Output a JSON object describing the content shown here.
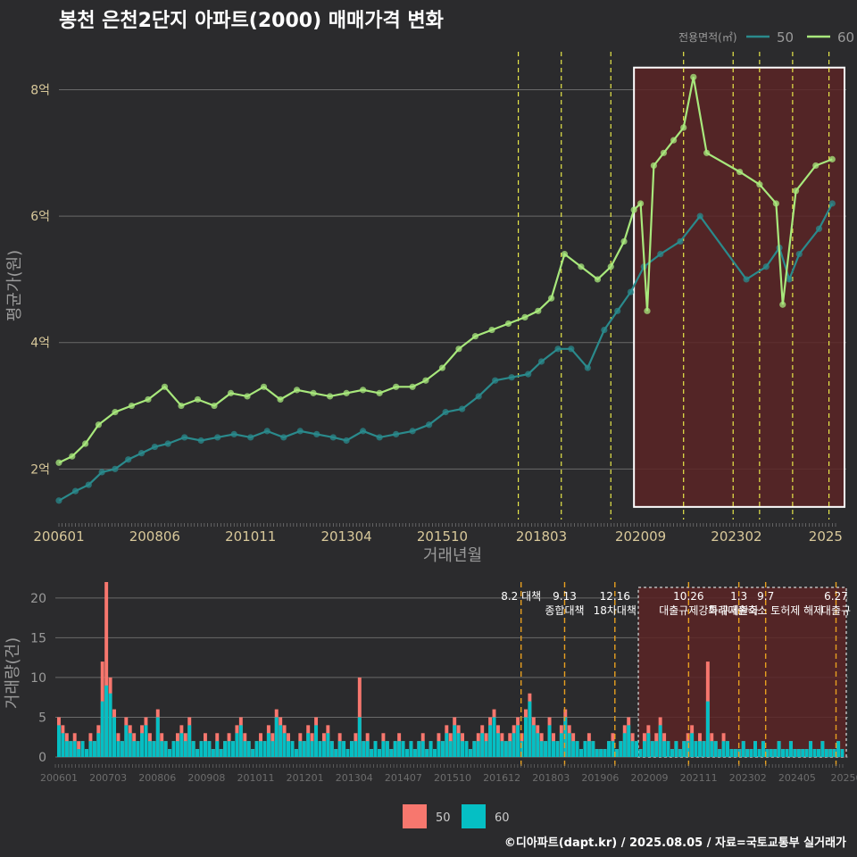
{
  "title": "봉천 은천2단지 아파트(2000) 매매가격 변화",
  "footer": "©디아파트(dapt.kr) / 2025.08.05 / 자료=국토교통부 실거래가",
  "colors": {
    "background": "#2b2b2d",
    "series_50_line": "#2a8a8c",
    "series_60_line": "#a8e87c",
    "bar_50": "#f7776e",
    "bar_60": "#05bfc4",
    "policy_line_yellow": "#e8e84a",
    "policy_line_orange": "#e8a020",
    "highlight_fill": "#5a2426",
    "grid": "#6a6a6a",
    "axis_text": "#d8c89a"
  },
  "chart_data": [
    {
      "type": "line",
      "title": "봉천 은천2단지 아파트(2000) 매매가격 변화",
      "xlabel": "거래년월",
      "ylabel": "평균가(원)",
      "legend": {
        "title": "전용면적(㎡)",
        "entries": [
          "50",
          "60"
        ],
        "placement": "top-right"
      },
      "x_ticks": [
        "200601",
        "200806",
        "201011",
        "201304",
        "201510",
        "201803",
        "202009",
        "202302",
        "2025"
      ],
      "y_ticks": [
        "2억",
        "4억",
        "6억",
        "8억"
      ],
      "ylim": [
        1.2,
        8.6
      ],
      "unit": "억",
      "policy_lines": [
        "2017-08",
        "2018-09",
        "2019-12",
        "2021-10",
        "2023-01",
        "2023-09",
        "2024-07",
        "2025-06"
      ],
      "highlight_range": [
        "2020-07",
        "2025-08"
      ],
      "series": [
        {
          "name": "50",
          "points": [
            [
              "2006-01",
              1.5
            ],
            [
              "2006-06",
              1.65
            ],
            [
              "2006-10",
              1.75
            ],
            [
              "2007-02",
              1.95
            ],
            [
              "2007-06",
              2.0
            ],
            [
              "2007-10",
              2.15
            ],
            [
              "2008-02",
              2.25
            ],
            [
              "2008-06",
              2.35
            ],
            [
              "2008-10",
              2.4
            ],
            [
              "2009-03",
              2.5
            ],
            [
              "2009-08",
              2.45
            ],
            [
              "2010-01",
              2.5
            ],
            [
              "2010-06",
              2.55
            ],
            [
              "2010-11",
              2.5
            ],
            [
              "2011-04",
              2.6
            ],
            [
              "2011-09",
              2.5
            ],
            [
              "2012-02",
              2.6
            ],
            [
              "2012-07",
              2.55
            ],
            [
              "2012-12",
              2.5
            ],
            [
              "2013-04",
              2.45
            ],
            [
              "2013-09",
              2.6
            ],
            [
              "2014-02",
              2.5
            ],
            [
              "2014-07",
              2.55
            ],
            [
              "2014-12",
              2.6
            ],
            [
              "2015-05",
              2.7
            ],
            [
              "2015-10",
              2.9
            ],
            [
              "2016-03",
              2.95
            ],
            [
              "2016-08",
              3.15
            ],
            [
              "2017-01",
              3.4
            ],
            [
              "2017-06",
              3.45
            ],
            [
              "2017-11",
              3.5
            ],
            [
              "2018-03",
              3.7
            ],
            [
              "2018-08",
              3.9
            ],
            [
              "2018-12",
              3.9
            ],
            [
              "2019-05",
              3.6
            ],
            [
              "2019-10",
              4.2
            ],
            [
              "2020-02",
              4.5
            ],
            [
              "2020-06",
              4.8
            ],
            [
              "2020-10",
              5.2
            ],
            [
              "2021-03",
              5.4
            ],
            [
              "2021-09",
              5.6
            ],
            [
              "2022-03",
              6.0
            ],
            [
              "2023-05",
              5.0
            ],
            [
              "2023-11",
              5.2
            ],
            [
              "2024-03",
              5.5
            ],
            [
              "2024-06",
              5.0
            ],
            [
              "2024-09",
              5.4
            ],
            [
              "2025-03",
              5.8
            ],
            [
              "2025-07",
              6.2
            ]
          ]
        },
        {
          "name": "60",
          "points": [
            [
              "2006-01",
              2.1
            ],
            [
              "2006-05",
              2.2
            ],
            [
              "2006-09",
              2.4
            ],
            [
              "2007-01",
              2.7
            ],
            [
              "2007-06",
              2.9
            ],
            [
              "2007-11",
              3.0
            ],
            [
              "2008-04",
              3.1
            ],
            [
              "2008-09",
              3.3
            ],
            [
              "2009-02",
              3.0
            ],
            [
              "2009-07",
              3.1
            ],
            [
              "2009-12",
              3.0
            ],
            [
              "2010-05",
              3.2
            ],
            [
              "2010-10",
              3.15
            ],
            [
              "2011-03",
              3.3
            ],
            [
              "2011-08",
              3.1
            ],
            [
              "2012-01",
              3.25
            ],
            [
              "2012-06",
              3.2
            ],
            [
              "2012-11",
              3.15
            ],
            [
              "2013-04",
              3.2
            ],
            [
              "2013-09",
              3.25
            ],
            [
              "2014-02",
              3.2
            ],
            [
              "2014-07",
              3.3
            ],
            [
              "2014-12",
              3.3
            ],
            [
              "2015-04",
              3.4
            ],
            [
              "2015-09",
              3.6
            ],
            [
              "2016-02",
              3.9
            ],
            [
              "2016-07",
              4.1
            ],
            [
              "2016-12",
              4.2
            ],
            [
              "2017-05",
              4.3
            ],
            [
              "2017-10",
              4.4
            ],
            [
              "2018-02",
              4.5
            ],
            [
              "2018-06",
              4.7
            ],
            [
              "2018-10",
              5.4
            ],
            [
              "2019-03",
              5.2
            ],
            [
              "2019-08",
              5.0
            ],
            [
              "2019-12",
              5.2
            ],
            [
              "2020-04",
              5.6
            ],
            [
              "2020-07",
              6.1
            ],
            [
              "2020-09",
              6.2
            ],
            [
              "2020-11",
              4.5
            ],
            [
              "2021-01",
              6.8
            ],
            [
              "2021-04",
              7.0
            ],
            [
              "2021-07",
              7.2
            ],
            [
              "2021-10",
              7.4
            ],
            [
              "2022-01",
              8.2
            ],
            [
              "2022-05",
              7.0
            ],
            [
              "2023-03",
              6.7
            ],
            [
              "2023-09",
              6.5
            ],
            [
              "2024-02",
              6.2
            ],
            [
              "2024-04",
              4.6
            ],
            [
              "2024-08",
              6.4
            ],
            [
              "2025-02",
              6.8
            ],
            [
              "2025-07",
              6.9
            ]
          ]
        }
      ]
    },
    {
      "type": "bar",
      "xlabel": "",
      "ylabel": "거래량(건)",
      "y_ticks": [
        "0",
        "5",
        "10",
        "15",
        "20"
      ],
      "ylim": [
        0,
        22
      ],
      "x_ticks": [
        "200601",
        "200703",
        "200806",
        "200908",
        "201011",
        "201201",
        "201304",
        "201407",
        "201510",
        "201612",
        "201803",
        "201906",
        "202009",
        "202111",
        "202302",
        "202405",
        "20250"
      ],
      "legend": {
        "entries": [
          "50",
          "60"
        ],
        "placement": "bottom"
      },
      "annotations": [
        {
          "date": "2017-08",
          "lines": [
            "8.2 대책"
          ]
        },
        {
          "date": "2018-09",
          "lines": [
            "9.13",
            "종합대책"
          ]
        },
        {
          "date": "2019-12",
          "lines": [
            "12.16",
            "18차대책"
          ]
        },
        {
          "date": "2021-10",
          "lines": [
            "10.26",
            "대출규제강화"
          ]
        },
        {
          "date": "2023-01",
          "lines": [
            "1.3",
            "규제완화"
          ]
        },
        {
          "date": "2023-09",
          "lines": [
            "9.7",
            "특례대출축소 토허제 해제"
          ]
        },
        {
          "date": "2025-06",
          "lines": [
            "6.27",
            "대출규"
          ]
        }
      ],
      "highlight_range": [
        "2020-07",
        "2025-08"
      ],
      "series": [
        {
          "name": "50",
          "values": [
            5,
            4,
            3,
            2,
            3,
            2,
            2,
            1,
            3,
            2,
            4,
            12,
            22,
            10,
            6,
            3,
            2,
            5,
            4,
            3,
            2,
            4,
            5,
            3,
            2,
            6,
            3,
            2,
            1,
            2,
            3,
            4,
            3,
            5,
            2,
            1,
            2,
            3,
            2,
            1,
            3,
            1,
            2,
            3,
            2,
            4,
            5,
            3,
            2,
            1,
            2,
            3,
            2,
            4,
            3,
            6,
            5,
            4,
            3,
            2,
            1,
            3,
            2,
            4,
            3,
            5,
            2,
            3,
            4,
            2,
            1,
            3,
            2,
            1,
            2,
            3,
            10,
            2,
            3,
            1,
            2,
            1,
            3,
            2,
            1,
            2,
            3,
            2,
            1,
            2,
            1,
            2,
            3,
            1,
            2,
            1,
            3,
            2,
            4,
            3,
            5,
            4,
            3,
            2,
            1,
            2,
            3,
            4,
            3,
            5,
            6,
            4,
            3,
            2,
            3,
            4,
            5,
            3,
            6,
            8,
            5,
            4,
            3,
            2,
            5,
            3,
            2,
            4,
            6,
            4,
            3,
            2,
            1,
            2,
            3,
            2,
            1,
            1,
            1,
            2,
            3,
            1,
            2,
            4,
            5,
            3,
            2,
            1,
            3,
            4,
            2,
            3,
            5,
            3,
            2,
            1,
            2,
            1,
            2,
            3,
            4,
            2,
            3,
            2,
            12,
            3,
            2,
            1,
            3,
            2,
            1,
            1,
            1,
            2,
            1,
            1,
            2,
            1,
            2,
            1,
            1,
            1,
            2,
            1,
            1,
            2,
            1,
            1,
            1,
            1,
            2,
            1,
            1,
            2,
            1,
            1,
            1,
            2,
            1
          ]
        },
        {
          "name": "60",
          "values": [
            4,
            3,
            2,
            2,
            2,
            1,
            2,
            1,
            2,
            2,
            3,
            7,
            9,
            8,
            5,
            2,
            2,
            4,
            3,
            2,
            2,
            3,
            4,
            2,
            2,
            5,
            2,
            2,
            1,
            2,
            2,
            3,
            2,
            4,
            2,
            1,
            2,
            2,
            2,
            1,
            2,
            1,
            2,
            2,
            2,
            3,
            4,
            2,
            2,
            1,
            2,
            2,
            2,
            3,
            2,
            5,
            4,
            3,
            2,
            2,
            1,
            2,
            2,
            3,
            2,
            4,
            2,
            2,
            3,
            2,
            1,
            2,
            2,
            1,
            2,
            2,
            5,
            2,
            2,
            1,
            2,
            1,
            2,
            2,
            1,
            2,
            2,
            2,
            1,
            2,
            1,
            2,
            2,
            1,
            2,
            1,
            2,
            2,
            3,
            2,
            4,
            3,
            2,
            2,
            1,
            2,
            2,
            3,
            2,
            4,
            5,
            3,
            2,
            2,
            2,
            3,
            4,
            2,
            5,
            7,
            4,
            3,
            2,
            2,
            4,
            2,
            2,
            3,
            5,
            3,
            2,
            2,
            1,
            2,
            2,
            2,
            1,
            1,
            1,
            2,
            2,
            1,
            2,
            3,
            4,
            2,
            2,
            1,
            2,
            3,
            2,
            2,
            4,
            2,
            2,
            1,
            2,
            1,
            2,
            2,
            3,
            2,
            2,
            2,
            7,
            2,
            2,
            1,
            2,
            2,
            1,
            1,
            1,
            2,
            1,
            1,
            2,
            1,
            2,
            1,
            1,
            1,
            2,
            1,
            1,
            2,
            1,
            1,
            1,
            1,
            2,
            1,
            1,
            2,
            1,
            1,
            1,
            2,
            1
          ]
        }
      ]
    }
  ]
}
